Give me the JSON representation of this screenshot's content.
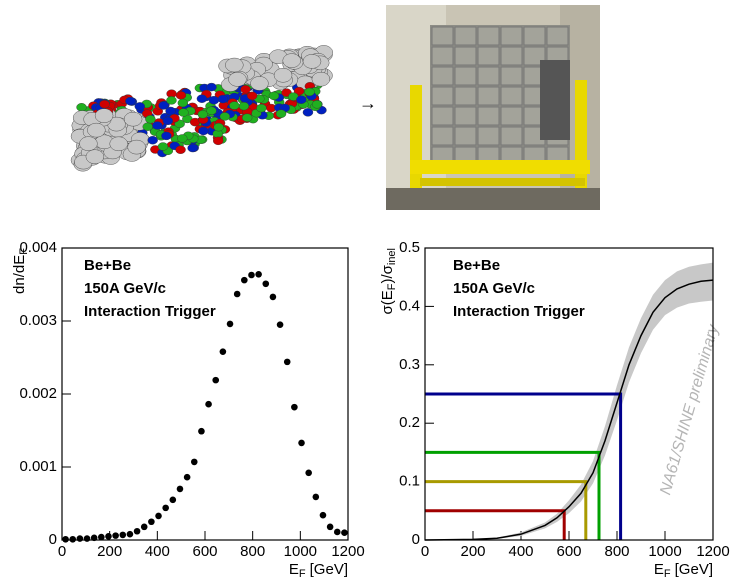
{
  "arrow": "→",
  "chart_data": [
    {
      "type": "scatter",
      "ylabel": [
        "dn/dE",
        "F"
      ],
      "xlabel": [
        "E",
        "F",
        "[GeV]"
      ],
      "annotations": [
        "Be+Be",
        "150A GeV/c",
        "Interaction Trigger"
      ],
      "color": "#000000",
      "x": [
        15,
        45,
        75,
        105,
        135,
        165,
        195,
        225,
        255,
        285,
        315,
        345,
        375,
        405,
        435,
        465,
        495,
        525,
        555,
        585,
        615,
        645,
        675,
        705,
        735,
        765,
        795,
        825,
        855,
        885,
        915,
        945,
        975,
        1005,
        1035,
        1065,
        1095,
        1125,
        1155,
        1185
      ],
      "values": [
        1e-05,
        1e-05,
        2e-05,
        2e-05,
        3e-05,
        4e-05,
        5e-05,
        6e-05,
        7e-05,
        8e-05,
        0.00012,
        0.00018,
        0.00025,
        0.00033,
        0.00044,
        0.00055,
        0.0007,
        0.00086,
        0.00107,
        0.00149,
        0.00186,
        0.00219,
        0.00258,
        0.00296,
        0.00337,
        0.00356,
        0.00363,
        0.00364,
        0.00351,
        0.00333,
        0.00295,
        0.00244,
        0.00182,
        0.00133,
        0.00092,
        0.00059,
        0.00034,
        0.00018,
        0.00011,
        0.0001
      ],
      "xlim": [
        0,
        1200
      ],
      "xticks": [
        0,
        200,
        400,
        600,
        800,
        1000,
        1200
      ],
      "ylim": [
        0,
        0.004
      ],
      "yticks": [
        0,
        0.001,
        0.002,
        0.003,
        0.004
      ]
    },
    {
      "type": "line",
      "ylabel": [
        "σ(E",
        "F",
        ")/σ",
        "inel"
      ],
      "xlabel": [
        "E",
        "F",
        "[GeV]"
      ],
      "annotations": [
        "Be+Be",
        "150A GeV/c",
        "Interaction Trigger"
      ],
      "watermark": "NA61/SHINE preliminary",
      "x": [
        0,
        200,
        300,
        400,
        500,
        550,
        600,
        650,
        700,
        750,
        800,
        850,
        900,
        950,
        1000,
        1050,
        1100,
        1150,
        1200
      ],
      "series": [
        {
          "color": "#000000",
          "values": [
            0,
            0.001,
            0.003,
            0.01,
            0.025,
            0.038,
            0.057,
            0.08,
            0.115,
            0.17,
            0.235,
            0.3,
            0.35,
            0.39,
            0.415,
            0.43,
            0.438,
            0.443,
            0.445
          ]
        }
      ],
      "band": {
        "color": "#c8c8c8",
        "lower": [
          0,
          0.001,
          0.002,
          0.007,
          0.02,
          0.031,
          0.046,
          0.066,
          0.097,
          0.145,
          0.205,
          0.27,
          0.32,
          0.36,
          0.385,
          0.398,
          0.405,
          0.408,
          0.41
        ],
        "upper": [
          0,
          0.001,
          0.004,
          0.013,
          0.03,
          0.045,
          0.068,
          0.095,
          0.135,
          0.195,
          0.265,
          0.33,
          0.38,
          0.42,
          0.445,
          0.46,
          0.468,
          0.472,
          0.475
        ]
      },
      "cuts": [
        {
          "color": "#a00000",
          "x": 580,
          "y": 0.05
        },
        {
          "color": "#a89a00",
          "x": 670,
          "y": 0.1
        },
        {
          "color": "#00a000",
          "x": 725,
          "y": 0.15
        },
        {
          "color": "#00008c",
          "x": 815,
          "y": 0.25
        }
      ],
      "xlim": [
        0,
        1200
      ],
      "xticks": [
        0,
        200,
        400,
        600,
        800,
        1000,
        1200
      ],
      "ylim": [
        0,
        0.5
      ],
      "yticks": [
        0,
        0.1,
        0.2,
        0.3,
        0.4,
        0.5
      ]
    }
  ]
}
